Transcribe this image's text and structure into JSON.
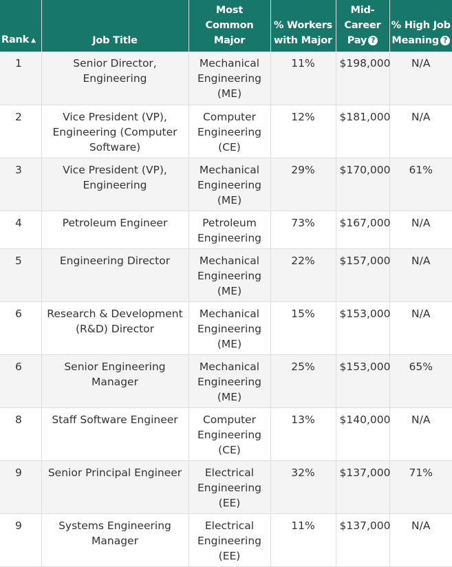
{
  "table": {
    "headers": {
      "rank": "Rank",
      "job_title": "Job Title",
      "major": [
        "Most",
        "Common",
        "Major"
      ],
      "workers": [
        "% Workers",
        "with Major"
      ],
      "pay": [
        "Mid-",
        "Career",
        "Pay"
      ],
      "meaning": [
        "% High Job",
        "Meaning"
      ]
    },
    "icons": {
      "sort": "sort-ascending-icon",
      "help": "help-question-icon"
    },
    "colors": {
      "header_bg": "#17776a",
      "row_alt_bg": "#f4f4f4",
      "text": "#333333"
    },
    "rows": [
      {
        "rank": "1",
        "title": [
          "Senior Director,",
          "Engineering"
        ],
        "major": [
          "Mechanical",
          "Engineering",
          "(ME)"
        ],
        "workers": "11%",
        "pay": "$198,000",
        "meaning": "N/A"
      },
      {
        "rank": "2",
        "title": [
          "Vice President (VP),",
          "Engineering (Computer",
          "Software)"
        ],
        "major": [
          "Computer",
          "Engineering",
          "(CE)"
        ],
        "workers": "12%",
        "pay": "$181,000",
        "meaning": "N/A"
      },
      {
        "rank": "3",
        "title": [
          "Vice President (VP),",
          "Engineering"
        ],
        "major": [
          "Mechanical",
          "Engineering",
          "(ME)"
        ],
        "workers": "29%",
        "pay": "$170,000",
        "meaning": "61%"
      },
      {
        "rank": "4",
        "title": [
          "Petroleum Engineer"
        ],
        "major": [
          "Petroleum",
          "Engineering"
        ],
        "workers": "73%",
        "pay": "$167,000",
        "meaning": "N/A"
      },
      {
        "rank": "5",
        "title": [
          "Engineering Director"
        ],
        "major": [
          "Mechanical",
          "Engineering",
          "(ME)"
        ],
        "workers": "22%",
        "pay": "$157,000",
        "meaning": "N/A"
      },
      {
        "rank": "6",
        "title": [
          "Research & Development",
          "(R&D) Director"
        ],
        "major": [
          "Mechanical",
          "Engineering",
          "(ME)"
        ],
        "workers": "15%",
        "pay": "$153,000",
        "meaning": "N/A"
      },
      {
        "rank": "6",
        "title": [
          "Senior Engineering",
          "Manager"
        ],
        "major": [
          "Mechanical",
          "Engineering",
          "(ME)"
        ],
        "workers": "25%",
        "pay": "$153,000",
        "meaning": "65%"
      },
      {
        "rank": "8",
        "title": [
          "Staff Software Engineer"
        ],
        "major": [
          "Computer",
          "Engineering",
          "(CE)"
        ],
        "workers": "13%",
        "pay": "$140,000",
        "meaning": "N/A"
      },
      {
        "rank": "9",
        "title": [
          "Senior Principal Engineer"
        ],
        "major": [
          "Electrical",
          "Engineering",
          "(EE)"
        ],
        "workers": "32%",
        "pay": "$137,000",
        "meaning": "71%"
      },
      {
        "rank": "9",
        "title": [
          "Systems Engineering",
          "Manager"
        ],
        "major": [
          "Electrical",
          "Engineering",
          "(EE)"
        ],
        "workers": "11%",
        "pay": "$137,000",
        "meaning": "N/A"
      }
    ]
  }
}
